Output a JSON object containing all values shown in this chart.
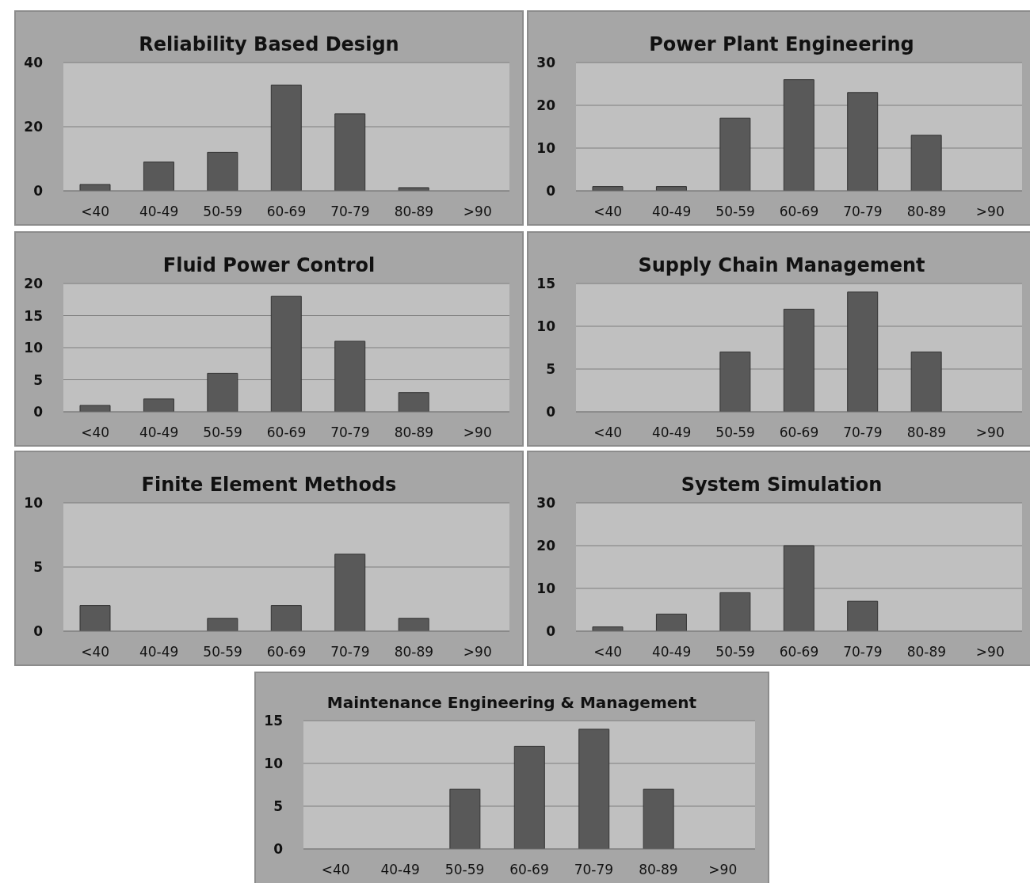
{
  "chart_data": [
    {
      "type": "bar",
      "title": "Reliability Based Design",
      "categories": [
        "<40",
        "40-49",
        "50-59",
        "60-69",
        "70-79",
        "80-89",
        ">90"
      ],
      "values": [
        2,
        9,
        12,
        33,
        24,
        1,
        0
      ],
      "color": "#595959",
      "ylim": [
        0,
        40
      ],
      "yticks": [
        0,
        20,
        40
      ],
      "grid": "y"
    },
    {
      "type": "bar",
      "title": "Power Plant Engineering",
      "categories": [
        "<40",
        "40-49",
        "50-59",
        "60-69",
        "70-79",
        "80-89",
        ">90"
      ],
      "values": [
        1,
        1,
        17,
        26,
        23,
        13,
        0
      ],
      "color": "#595959",
      "ylim": [
        0,
        30
      ],
      "yticks": [
        0,
        10,
        20,
        30
      ],
      "grid": "y"
    },
    {
      "type": "bar",
      "title": "Fluid Power Control",
      "categories": [
        "<40",
        "40-49",
        "50-59",
        "60-69",
        "70-79",
        "80-89",
        ">90"
      ],
      "values": [
        1,
        2,
        6,
        18,
        11,
        3,
        0
      ],
      "color": "#595959",
      "ylim": [
        0,
        20
      ],
      "yticks": [
        0,
        5,
        10,
        15,
        20
      ],
      "grid": "y"
    },
    {
      "type": "bar",
      "title": "Supply Chain Management",
      "categories": [
        "<40",
        "40-49",
        "50-59",
        "60-69",
        "70-79",
        "80-89",
        ">90"
      ],
      "values": [
        0,
        0,
        7,
        12,
        14,
        7,
        0
      ],
      "color": "#595959",
      "ylim": [
        0,
        15
      ],
      "yticks": [
        0,
        5,
        10,
        15
      ],
      "grid": "y"
    },
    {
      "type": "bar",
      "title": "Finite Element Methods",
      "categories": [
        "<40",
        "40-49",
        "50-59",
        "60-69",
        "70-79",
        "80-89",
        ">90"
      ],
      "values": [
        2,
        0,
        1,
        2,
        6,
        1,
        0
      ],
      "color": "#595959",
      "ylim": [
        0,
        10
      ],
      "yticks": [
        0,
        5,
        10
      ],
      "grid": "y"
    },
    {
      "type": "bar",
      "title": "System Simulation",
      "categories": [
        "<40",
        "40-49",
        "50-59",
        "60-69",
        "70-79",
        "80-89",
        ">90"
      ],
      "values": [
        1,
        4,
        9,
        20,
        7,
        0,
        0
      ],
      "color": "#595959",
      "ylim": [
        0,
        30
      ],
      "yticks": [
        0,
        10,
        20,
        30
      ],
      "grid": "y"
    },
    {
      "type": "bar",
      "title": "Maintenance Engineering & Management",
      "categories": [
        "<40",
        "40-49",
        "50-59",
        "60-69",
        "70-79",
        "80-89",
        ">90"
      ],
      "values": [
        0,
        0,
        7,
        12,
        14,
        7,
        0
      ],
      "color": "#595959",
      "ylim": [
        0,
        15
      ],
      "yticks": [
        0,
        5,
        10,
        15
      ],
      "grid": "y"
    }
  ]
}
